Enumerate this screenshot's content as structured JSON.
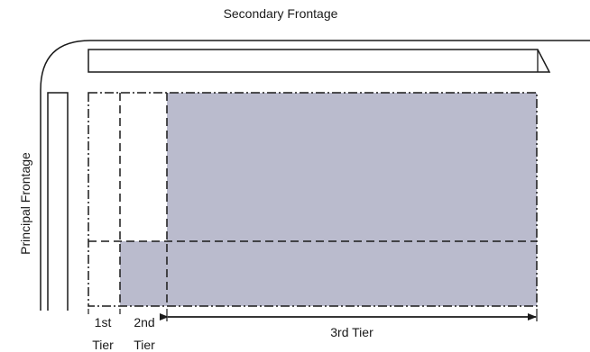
{
  "labels": {
    "secondary_frontage": "Secondary Frontage",
    "principal_frontage": "Principal Frontage",
    "tier1_line1": "1st",
    "tier1_line2": "Tier",
    "tier2_line1": "2nd",
    "tier2_line2": "Tier",
    "tier3": "3rd Tier"
  },
  "colors": {
    "shaded_area": "#babbcd",
    "line": "#1a1a1a"
  }
}
